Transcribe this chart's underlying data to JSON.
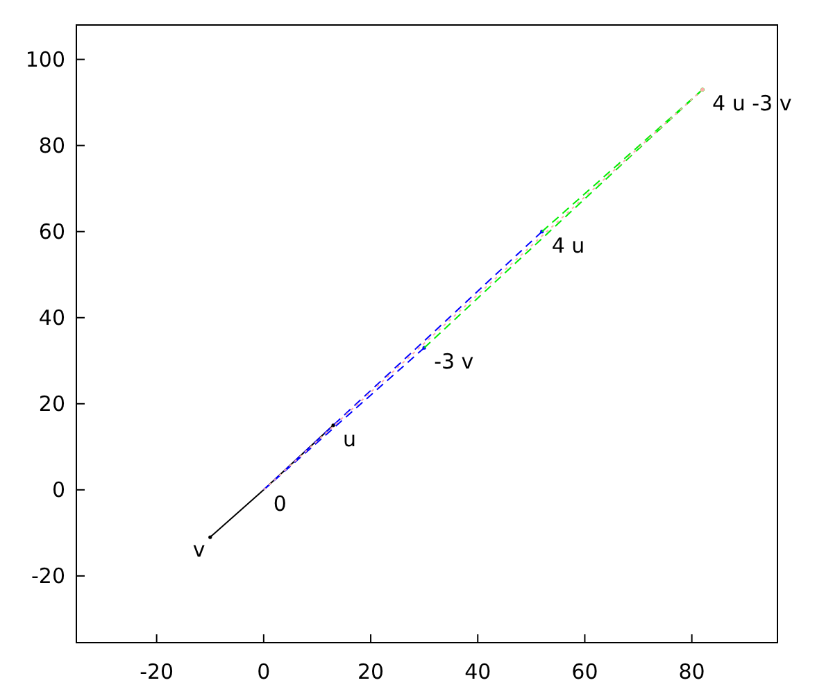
{
  "chart_data": {
    "type": "line",
    "xlim": [
      -35,
      96
    ],
    "ylim": [
      -35.5,
      108
    ],
    "xticks": [
      -20,
      0,
      20,
      40,
      60,
      80
    ],
    "yticks": [
      -20,
      0,
      20,
      40,
      60,
      80,
      100
    ],
    "grid": false,
    "series": [
      {
        "color": "#000000",
        "line_style": "solid",
        "x": [
          -10,
          0,
          13
        ],
        "values": [
          -11,
          0,
          15
        ]
      },
      {
        "color": "#ffaaaa",
        "line_style": "dotted",
        "x": [
          0,
          82
        ],
        "values": [
          0,
          93
        ]
      },
      {
        "color": "#0000ff",
        "line_style": "dashed",
        "x": [
          0,
          52
        ],
        "values": [
          0,
          60
        ]
      },
      {
        "color": "#0000ff",
        "line_style": "dashed",
        "x": [
          0,
          30
        ],
        "values": [
          0,
          33
        ]
      },
      {
        "color": "#00ee00",
        "line_style": "dashed",
        "x": [
          52,
          82
        ],
        "values": [
          60,
          93
        ]
      },
      {
        "color": "#00ee00",
        "line_style": "dashed",
        "x": [
          30,
          82
        ],
        "values": [
          33,
          93
        ]
      }
    ],
    "annotations": [
      {
        "text": "0",
        "x": 0,
        "y": 0
      },
      {
        "text": "u",
        "x": 13,
        "y": 15
      },
      {
        "text": "v",
        "x": -10,
        "y": -11
      },
      {
        "text": "-3 v",
        "x": 30,
        "y": 33
      },
      {
        "text": "4 u",
        "x": 52,
        "y": 60
      },
      {
        "text": "4 u -3 v",
        "x": 82,
        "y": 93
      }
    ]
  }
}
